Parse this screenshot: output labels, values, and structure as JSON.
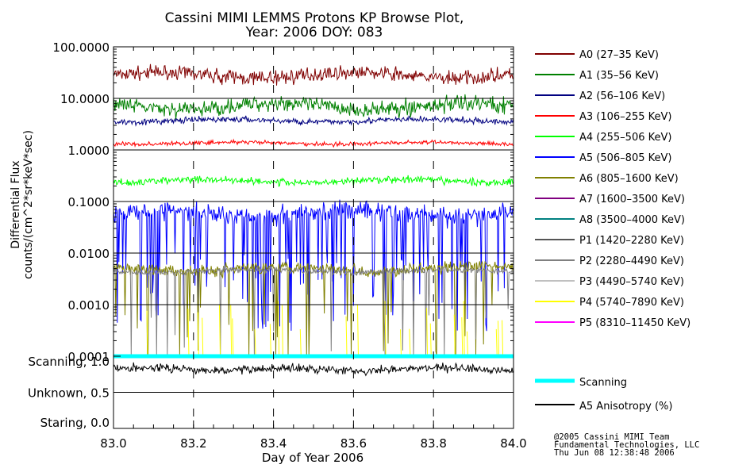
{
  "chart_data": {
    "type": "line",
    "title": "Cassini MIMI LEMMS Protons KP Browse Plot,",
    "subtitle": "Year: 2006 DOY: 083",
    "xlabel": "Day of Year 2006",
    "ylabel_line1": "Differential Flux",
    "ylabel_line2": "counts/(cm^2*sr*keV*sec)",
    "xlim": [
      83.0,
      84.0
    ],
    "x_ticks": [
      "83.0",
      "83.2",
      "83.4",
      "83.6",
      "83.8",
      "84.0"
    ],
    "x_tick_values": [
      83.0,
      83.2,
      83.4,
      83.6,
      83.8,
      84.0
    ],
    "y_scale": "log",
    "ylim": [
      0.0001,
      100
    ],
    "y_ticks": [
      "100.0000",
      "10.0000",
      "1.0000",
      "0.1000",
      "0.0100",
      "0.0010",
      "0.0001"
    ],
    "y_tick_values": [
      100,
      10,
      1,
      0.1,
      0.01,
      0.001,
      0.0001
    ],
    "grid": true,
    "legend_position": "right",
    "series": [
      {
        "name": "A0 (27–35 KeV)",
        "color": "#800000",
        "level": 28,
        "spread": 0.11,
        "drops": 0
      },
      {
        "name": "A1 (35–56 KeV)",
        "color": "#008000",
        "level": 7,
        "spread": 0.13,
        "drops": 0
      },
      {
        "name": "A2 (56–106 KeV)",
        "color": "#000080",
        "level": 3.7,
        "spread": 0.05,
        "drops": 0
      },
      {
        "name": "A3 (106–255 KeV)",
        "color": "#ff0000",
        "level": 1.35,
        "spread": 0.035,
        "drops": 0
      },
      {
        "name": "A4 (255–506 KeV)",
        "color": "#00ff00",
        "level": 0.25,
        "spread": 0.06,
        "drops": 0
      },
      {
        "name": "A5 (506–805 KeV)",
        "color": "#0000ff",
        "level": 0.06,
        "spread": 0.15,
        "drops": 0.2
      },
      {
        "name": "A6 (805–1600 KeV)",
        "color": "#808000",
        "level": 0.005,
        "spread": 0.1,
        "drops": 0.07
      },
      {
        "name": "A7 (1600–3500 KeV)",
        "color": "#800080",
        "level": null,
        "spread": 0,
        "drops": 0
      },
      {
        "name": "A8 (3500–4000 KeV)",
        "color": "#008080",
        "level": null,
        "spread": 0,
        "drops": 0
      },
      {
        "name": "P1 (1420–2280 KeV)",
        "color": "#555555",
        "level": null,
        "spread": 0,
        "drops": 0
      },
      {
        "name": "P2 (2280–4490 KeV)",
        "color": "#808080",
        "level": 0.0045,
        "spread": 0.05,
        "drops": 0.04
      },
      {
        "name": "P3 (4490–5740 KeV)",
        "color": "#c0c0c0",
        "level": null,
        "spread": 0,
        "drops": 0
      },
      {
        "name": "P4 (5740–7890 KeV)",
        "color": "#ffff00",
        "level": 0.0003,
        "spread": 0.2,
        "drops": 0,
        "sparse": true
      },
      {
        "name": "P5 (8310–11450 KeV)",
        "color": "#ff00ff",
        "level": null,
        "spread": 0,
        "drops": 0
      }
    ],
    "lower_panel": {
      "y_ticks": [
        "Scanning, 1.0",
        "Unknown, 0.5",
        "Staring, 0.0"
      ],
      "y_tick_values": [
        1.0,
        0.5,
        0.0
      ],
      "ylim": [
        0.0,
        1.0
      ],
      "series": [
        {
          "name": "Scanning",
          "color": "#00ffff",
          "value": 1.0
        },
        {
          "name": "A5 Anisotropy (%)",
          "color": "#000000",
          "level": 0.82,
          "spread": 0.05
        }
      ]
    }
  },
  "credit": {
    "line1": "@2005 Cassini MIMI Team",
    "line2": "Fundamental Technologies, LLC",
    "line3": "Thu Jun 08 12:38:48 2006"
  }
}
